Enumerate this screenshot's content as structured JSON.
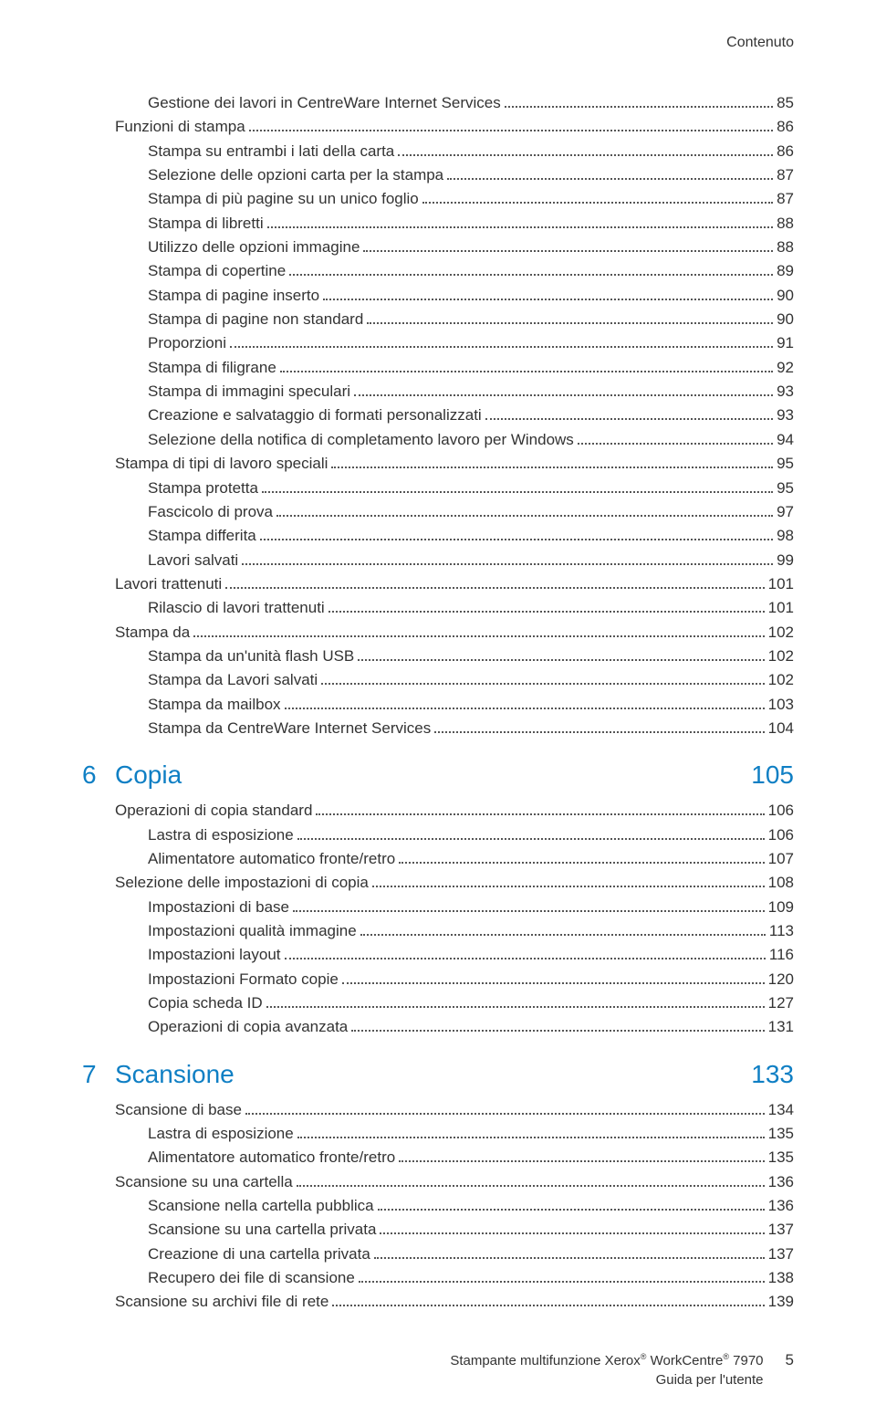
{
  "header": {
    "label": "Contenuto"
  },
  "colors": {
    "accent": "#0f7fc4",
    "text": "#333333",
    "dots": "#555555"
  },
  "toc1": [
    {
      "indent": 2,
      "label": "Gestione dei lavori in CentreWare Internet Services",
      "page": "85"
    },
    {
      "indent": 1,
      "label": "Funzioni di stampa",
      "page": "86"
    },
    {
      "indent": 2,
      "label": "Stampa su entrambi i lati della carta",
      "page": "86"
    },
    {
      "indent": 2,
      "label": "Selezione delle opzioni carta per la stampa",
      "page": "87"
    },
    {
      "indent": 2,
      "label": "Stampa di più pagine su un unico foglio",
      "page": "87"
    },
    {
      "indent": 2,
      "label": "Stampa di libretti",
      "page": "88"
    },
    {
      "indent": 2,
      "label": "Utilizzo delle opzioni immagine",
      "page": "88"
    },
    {
      "indent": 2,
      "label": "Stampa di copertine",
      "page": "89"
    },
    {
      "indent": 2,
      "label": "Stampa di pagine inserto",
      "page": "90"
    },
    {
      "indent": 2,
      "label": "Stampa di pagine non standard",
      "page": "90"
    },
    {
      "indent": 2,
      "label": "Proporzioni",
      "page": "91"
    },
    {
      "indent": 2,
      "label": "Stampa di filigrane",
      "page": "92"
    },
    {
      "indent": 2,
      "label": "Stampa di immagini speculari",
      "page": "93"
    },
    {
      "indent": 2,
      "label": "Creazione e salvataggio di formati personalizzati",
      "page": "93"
    },
    {
      "indent": 2,
      "label": "Selezione della notifica di completamento lavoro per Windows",
      "page": "94"
    },
    {
      "indent": 1,
      "label": "Stampa di tipi di lavoro speciali",
      "page": "95"
    },
    {
      "indent": 2,
      "label": "Stampa protetta",
      "page": "95"
    },
    {
      "indent": 2,
      "label": "Fascicolo di prova",
      "page": "97"
    },
    {
      "indent": 2,
      "label": "Stampa differita",
      "page": "98"
    },
    {
      "indent": 2,
      "label": "Lavori salvati",
      "page": "99"
    },
    {
      "indent": 1,
      "label": "Lavori trattenuti",
      "page": "101"
    },
    {
      "indent": 2,
      "label": "Rilascio di lavori trattenuti",
      "page": "101"
    },
    {
      "indent": 1,
      "label": "Stampa da",
      "page": "102"
    },
    {
      "indent": 2,
      "label": "Stampa da un'unità flash USB",
      "page": "102"
    },
    {
      "indent": 2,
      "label": "Stampa da Lavori salvati",
      "page": "102"
    },
    {
      "indent": 2,
      "label": "Stampa da mailbox",
      "page": "103"
    },
    {
      "indent": 2,
      "label": "Stampa da CentreWare Internet Services",
      "page": "104"
    }
  ],
  "section6": {
    "num": "6",
    "title": "Copia",
    "page": "105"
  },
  "toc2": [
    {
      "indent": 1,
      "label": "Operazioni di copia standard",
      "page": "106"
    },
    {
      "indent": 2,
      "label": "Lastra di esposizione",
      "page": "106"
    },
    {
      "indent": 2,
      "label": "Alimentatore automatico fronte/retro",
      "page": "107"
    },
    {
      "indent": 1,
      "label": "Selezione delle impostazioni di copia",
      "page": "108"
    },
    {
      "indent": 2,
      "label": "Impostazioni di base",
      "page": "109"
    },
    {
      "indent": 2,
      "label": "Impostazioni qualità immagine",
      "page": "113"
    },
    {
      "indent": 2,
      "label": "Impostazioni layout",
      "page": "116"
    },
    {
      "indent": 2,
      "label": "Impostazioni Formato copie",
      "page": "120"
    },
    {
      "indent": 2,
      "label": "Copia scheda ID",
      "page": "127"
    },
    {
      "indent": 2,
      "label": "Operazioni di copia avanzata",
      "page": "131"
    }
  ],
  "section7": {
    "num": "7",
    "title": "Scansione",
    "page": "133"
  },
  "toc3": [
    {
      "indent": 1,
      "label": "Scansione di base",
      "page": "134"
    },
    {
      "indent": 2,
      "label": "Lastra di esposizione",
      "page": "135"
    },
    {
      "indent": 2,
      "label": "Alimentatore automatico fronte/retro",
      "page": "135"
    },
    {
      "indent": 1,
      "label": "Scansione su una cartella",
      "page": "136"
    },
    {
      "indent": 2,
      "label": "Scansione nella cartella pubblica",
      "page": "136"
    },
    {
      "indent": 2,
      "label": "Scansione su una cartella privata",
      "page": "137"
    },
    {
      "indent": 2,
      "label": "Creazione di una cartella privata",
      "page": "137"
    },
    {
      "indent": 2,
      "label": "Recupero dei file di scansione",
      "page": "138"
    },
    {
      "indent": 1,
      "label": "Scansione su archivi file di rete",
      "page": "139"
    }
  ],
  "footer": {
    "line1_a": "Stampante multifunzione Xerox",
    "line1_b": " WorkCentre",
    "line1_c": " 7970",
    "line2": "Guida per l'utente",
    "page": "5"
  }
}
